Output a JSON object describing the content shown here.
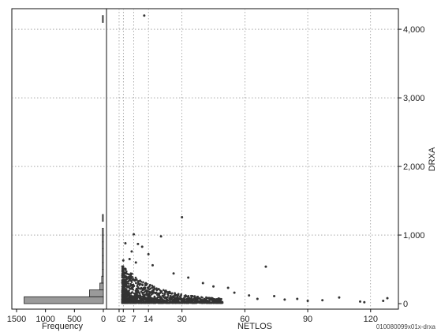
{
  "chart_data": [
    {
      "type": "bar",
      "orientation": "horizontal",
      "xlabel": "Frequency",
      "x_ticks": [
        "1500",
        "1000",
        "500",
        "0"
      ],
      "xlim": [
        1500,
        0
      ],
      "bins_ylim": [
        0,
        4300
      ],
      "bins": [
        {
          "y0": 0,
          "y1": 100,
          "count": 1370
        },
        {
          "y0": 100,
          "y1": 200,
          "count": 240
        },
        {
          "y0": 200,
          "y1": 300,
          "count": 60
        },
        {
          "y0": 300,
          "y1": 400,
          "count": 28
        },
        {
          "y0": 400,
          "y1": 500,
          "count": 14
        },
        {
          "y0": 500,
          "y1": 600,
          "count": 8
        },
        {
          "y0": 600,
          "y1": 700,
          "count": 4
        },
        {
          "y0": 700,
          "y1": 800,
          "count": 2
        },
        {
          "y0": 800,
          "y1": 900,
          "count": 2
        },
        {
          "y0": 900,
          "y1": 1000,
          "count": 1
        },
        {
          "y0": 1000,
          "y1": 1100,
          "count": 1
        },
        {
          "y0": 1200,
          "y1": 1300,
          "count": 1
        },
        {
          "y0": 4100,
          "y1": 4200,
          "count": 1
        }
      ]
    },
    {
      "type": "scatter",
      "xlabel": "NETLOS",
      "ylabel": "DRXA",
      "x_ticks": [
        "0",
        "2",
        "7",
        "14",
        "30",
        "60",
        "90",
        "120"
      ],
      "x_tick_values": [
        0,
        2,
        7,
        14,
        30,
        60,
        90,
        120
      ],
      "y_ticks": [
        "0",
        "1,000",
        "2,000",
        "3,000",
        "4,000"
      ],
      "y_tick_values": [
        0,
        1000,
        2000,
        3000,
        4000
      ],
      "xlim": [
        -3,
        131
      ],
      "ylim": [
        -80,
        4300
      ],
      "y_axis_side": "right",
      "grid": true,
      "outliers": [
        {
          "x": 12,
          "y": 4200
        },
        {
          "x": 30,
          "y": 1260
        },
        {
          "x": 7,
          "y": 1010
        },
        {
          "x": 20,
          "y": 980
        },
        {
          "x": 3,
          "y": 880
        },
        {
          "x": 9,
          "y": 870
        },
        {
          "x": 11,
          "y": 830
        },
        {
          "x": 6,
          "y": 760
        },
        {
          "x": 14,
          "y": 720
        },
        {
          "x": 5,
          "y": 650
        },
        {
          "x": 8,
          "y": 600
        },
        {
          "x": 2,
          "y": 630
        },
        {
          "x": 16,
          "y": 560
        },
        {
          "x": 70,
          "y": 540
        },
        {
          "x": 26,
          "y": 440
        },
        {
          "x": 33,
          "y": 380
        },
        {
          "x": 40,
          "y": 300
        },
        {
          "x": 45,
          "y": 250
        },
        {
          "x": 52,
          "y": 230
        },
        {
          "x": 55,
          "y": 160
        },
        {
          "x": 62,
          "y": 120
        },
        {
          "x": 66,
          "y": 70
        },
        {
          "x": 74,
          "y": 110
        },
        {
          "x": 79,
          "y": 60
        },
        {
          "x": 85,
          "y": 70
        },
        {
          "x": 90,
          "y": 40
        },
        {
          "x": 97,
          "y": 50
        },
        {
          "x": 105,
          "y": 90
        },
        {
          "x": 115,
          "y": 30
        },
        {
          "x": 117,
          "y": 20
        },
        {
          "x": 126,
          "y": 40
        },
        {
          "x": 128,
          "y": 80
        }
      ]
    }
  ],
  "figure_code": "010080099x01x-drxa"
}
